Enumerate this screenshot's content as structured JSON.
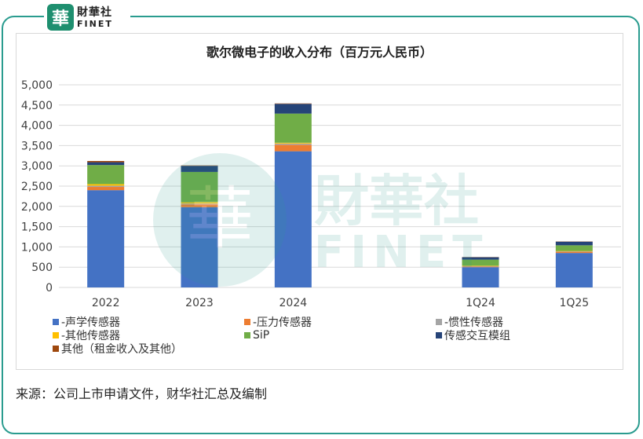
{
  "brand": {
    "seal_char": "華",
    "cn": "財華社",
    "en": "FINET"
  },
  "watermark": {
    "cn": "財華社",
    "en": "FINET",
    "seal_char": "華"
  },
  "chart_title": "歌尔微电子的收入分布（百万元人民币）",
  "source_text": "来源：公司上市申请文件，财华社汇总及编制",
  "colors": {
    "frame": "#2a9c8f",
    "grid": "#d9d9d9",
    "axis_text": "#404040"
  },
  "chart_data": {
    "type": "bar",
    "stacked": true,
    "title": "歌尔微电子的收入分布（百万元人民币）",
    "categories": [
      "2022",
      "2023",
      "2024",
      "",
      "1Q24",
      "1Q25"
    ],
    "ylim": [
      0,
      5000
    ],
    "ytick_labels": [
      "0",
      "500",
      "1,000",
      "1,500",
      "2,000",
      "2,500",
      "3,000",
      "3,500",
      "4,000",
      "4,500",
      "5,000"
    ],
    "grid": true,
    "legend_position": "bottom",
    "series": [
      {
        "name": "声学传感器",
        "legend_label": "-声学传感器",
        "color": "#4472c4",
        "values": [
          2400,
          1980,
          3360,
          null,
          500,
          850
        ]
      },
      {
        "name": "压力传感器",
        "legend_label": "-压力传感器",
        "color": "#ed7d31",
        "values": [
          80,
          70,
          160,
          null,
          15,
          30
        ]
      },
      {
        "name": "惯性传感器",
        "legend_label": "-惯性传感器",
        "color": "#a5a5a5",
        "values": [
          30,
          20,
          30,
          null,
          10,
          10
        ]
      },
      {
        "name": "其他传感器",
        "legend_label": "-其他传感器",
        "color": "#ffc000",
        "values": [
          40,
          30,
          20,
          null,
          10,
          10
        ]
      },
      {
        "name": "SiP",
        "legend_label": "SiP",
        "color": "#70ad47",
        "values": [
          470,
          750,
          720,
          null,
          150,
          140
        ]
      },
      {
        "name": "传感交互模组",
        "legend_label": "传感交互模组",
        "color": "#264478",
        "values": [
          70,
          150,
          240,
          null,
          60,
          90
        ]
      },
      {
        "name": "其他（租金收入及其他）",
        "legend_label": "其他（租金收入及其他）",
        "color": "#9e480e",
        "values": [
          30,
          10,
          10,
          null,
          5,
          5
        ]
      }
    ]
  }
}
